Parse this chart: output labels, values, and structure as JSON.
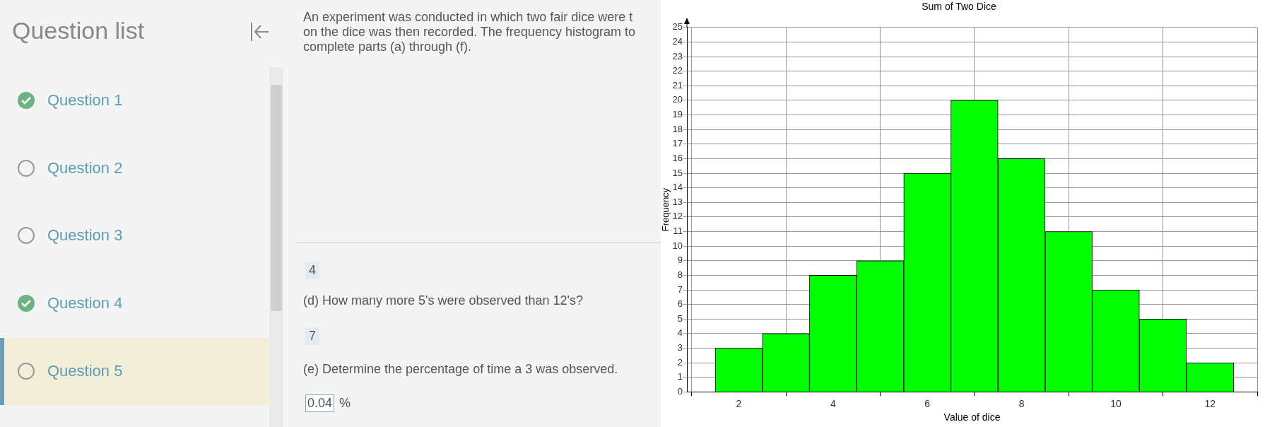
{
  "chart_data": {
    "type": "histogram",
    "title": "Sum of Two Dice",
    "xlabel": "Value of dice",
    "ylabel": "Frequency",
    "bins": [
      1.5,
      2.5,
      3.5,
      4.5,
      5.5,
      6.5,
      7.5,
      8.5,
      9.5,
      10.5,
      11.5,
      12.5
    ],
    "values": [
      3,
      4,
      8,
      9,
      15,
      20,
      16,
      11,
      7,
      5,
      2
    ],
    "color": "#00ff00",
    "xlim": [
      0.9,
      13
    ],
    "xticks": [
      2,
      4,
      6,
      8,
      10,
      12
    ],
    "ylim": [
      0,
      25
    ],
    "yticks": [
      0,
      1,
      2,
      3,
      4,
      5,
      6,
      7,
      8,
      9,
      10,
      11,
      12,
      13,
      14,
      15,
      16,
      17,
      18,
      19,
      20,
      21,
      22,
      23,
      24,
      25
    ],
    "grid": true,
    "annotations": [
      "Question list",
      "Question 1",
      "Question 2",
      "Question 3",
      "Question 4",
      "Question 5",
      "An experiment was conducted in which two fair dice were t",
      "on the dice was then recorded. The frequency histogram to",
      "complete parts (a) through (f).",
      "4",
      "(d) How many more 5's were observed than 12's?",
      "7",
      "(e) Determine the percentage of time a 3 was observed.",
      "0.04",
      "%"
    ]
  }
}
